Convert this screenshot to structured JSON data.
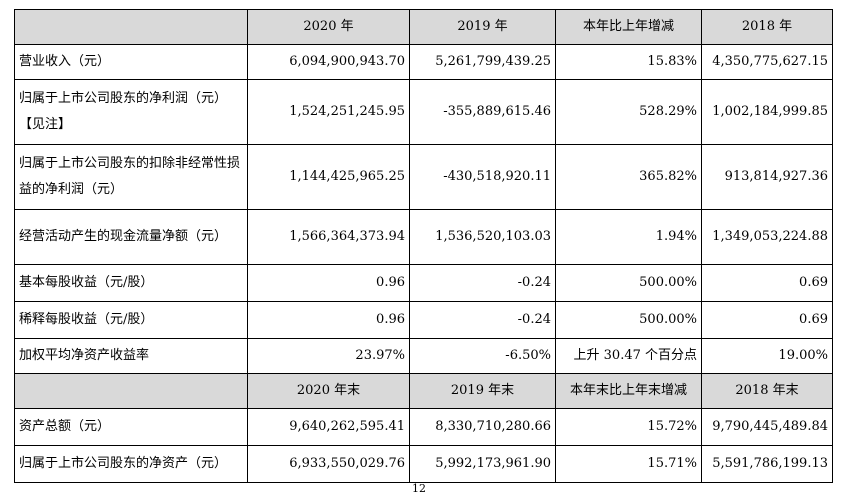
{
  "header1": [
    "",
    "2020 年",
    "2019 年",
    "本年比上年增减",
    "2018 年"
  ],
  "rows1": [
    {
      "label": "营业收入（元）",
      "v2020": "6,094,900,943.70",
      "v2019": "5,261,799,439.25",
      "change": "15.83%",
      "v2018": "4,350,775,627.15"
    },
    {
      "label": "归属于上市公司股东的净利润（元）【见注】",
      "v2020": "1,524,251,245.95",
      "v2019": "-355,889,615.46",
      "change": "528.29%",
      "v2018": "1,002,184,999.85"
    },
    {
      "label": "归属于上市公司股东的扣除非经常性损益的净利润（元）",
      "v2020": "1,144,425,965.25",
      "v2019": "-430,518,920.11",
      "change": "365.82%",
      "v2018": "913,814,927.36"
    },
    {
      "label": "经营活动产生的现金流量净额（元）",
      "v2020": "1,566,364,373.94",
      "v2019": "1,536,520,103.03",
      "change": "1.94%",
      "v2018": "1,349,053,224.88"
    },
    {
      "label": "基本每股收益（元/股）",
      "v2020": "0.96",
      "v2019": "-0.24",
      "change": "500.00%",
      "v2018": "0.69"
    },
    {
      "label": "稀释每股收益（元/股）",
      "v2020": "0.96",
      "v2019": "-0.24",
      "change": "500.00%",
      "v2018": "0.69"
    },
    {
      "label": "加权平均净资产收益率",
      "v2020": "23.97%",
      "v2019": "-6.50%",
      "change": "上升 30.47 个百分点",
      "v2018": "19.00%"
    }
  ],
  "header2": [
    "",
    "2020 年末",
    "2019 年末",
    "本年末比上年末增减",
    "2018 年末"
  ],
  "rows2": [
    {
      "label": "资产总额（元）",
      "v2020": "9,640,262,595.41",
      "v2019": "8,330,710,280.66",
      "change": "15.72%",
      "v2018": "9,790,445,489.84"
    },
    {
      "label": "归属于上市公司股东的净资产（元）",
      "v2020": "6,933,550,029.76",
      "v2019": "5,992,173,961.90",
      "change": "15.71%",
      "v2018": "5,591,786,199.13"
    }
  ],
  "page_number": "12"
}
